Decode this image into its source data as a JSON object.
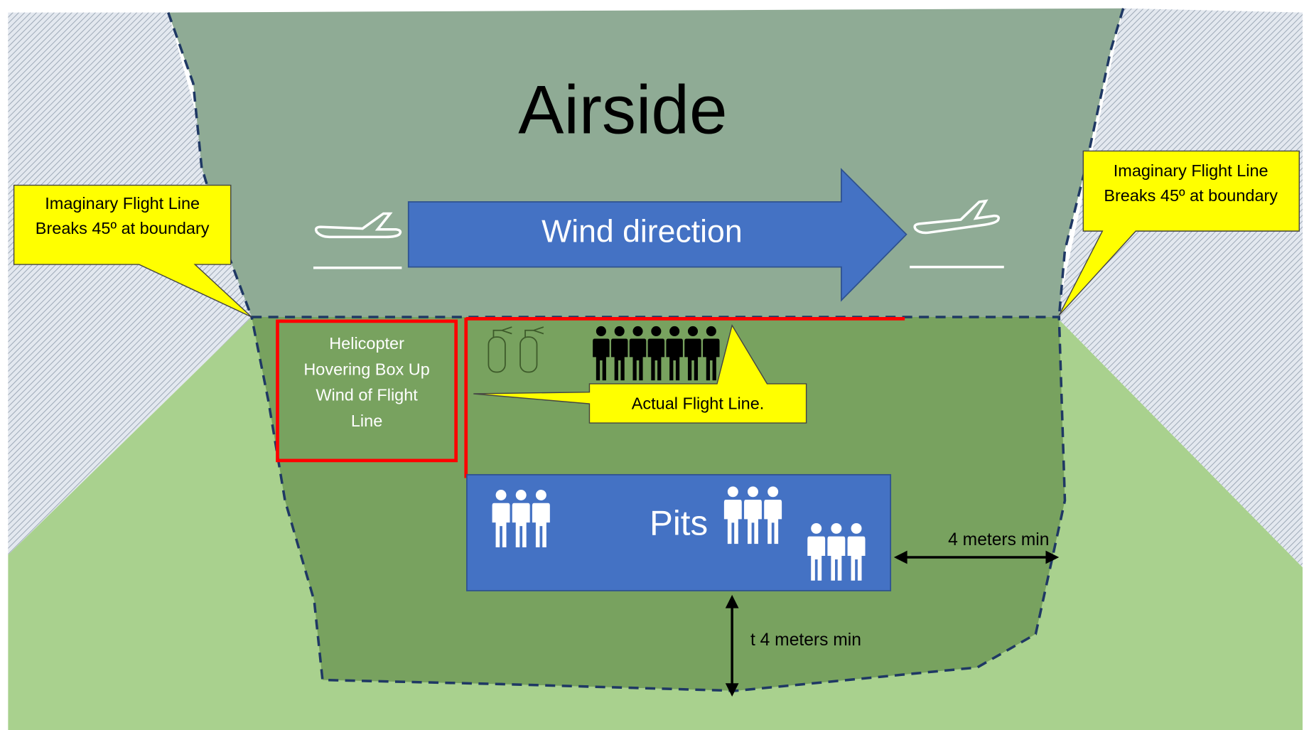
{
  "title": "Airside",
  "wind": "Wind direction",
  "callouts": [
    {
      "lines": [
        "Imaginary Flight Line",
        "Breaks 45º at boundary"
      ]
    },
    {
      "lines": [
        "Imaginary Flight Line",
        "Breaks 45º at boundary"
      ]
    }
  ],
  "heli_box": {
    "lines": [
      "Helicopter",
      "Hovering Box Up",
      "Wind of Flight",
      "Line"
    ]
  },
  "flight_line": "Actual Flight Line.",
  "pits": "Pits",
  "side_gap": "4 meters min",
  "bottom_gap": "t 4 meters min"
}
